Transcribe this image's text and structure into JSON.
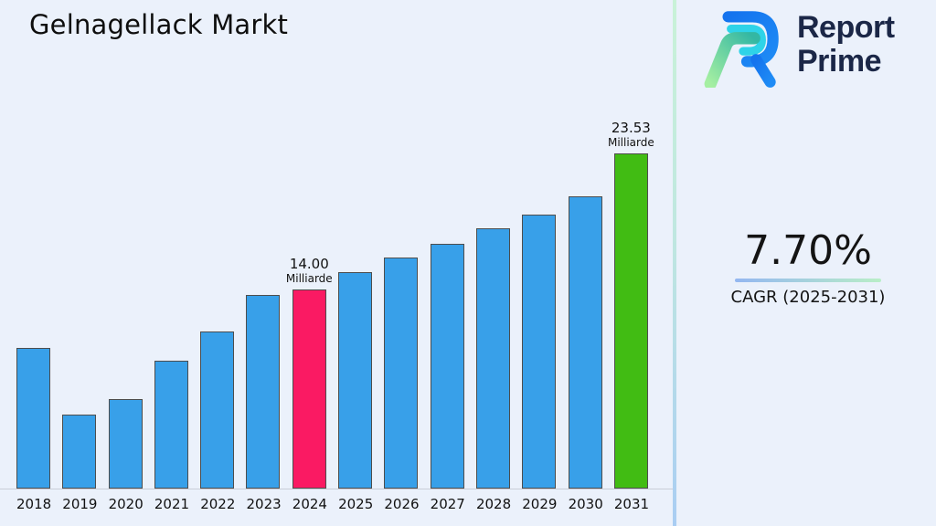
{
  "page": {
    "title": "Gelnagellack Markt"
  },
  "brand": {
    "name_line1": "Report",
    "name_line2": "Prime",
    "logo_colors": {
      "blue": "#1473EE",
      "cyan": "#2ED3E8",
      "green_light": "#A5EFA2",
      "green_teal": "#33B7A3",
      "text_navy": "#1B2747"
    }
  },
  "kpi": {
    "value": "7.70%",
    "label": "CAGR (2025-2031)"
  },
  "colors": {
    "background": "#EBF1FB",
    "bar_border": "#4d4d4d",
    "axis_line": "#c9ced8",
    "divider_top": "#c9f2d8",
    "divider_bottom": "#a9cdf3",
    "underline_left": "#94b7f1",
    "underline_right": "#b9eec7"
  },
  "chart_data": {
    "type": "bar",
    "title": "Gelnagellack Markt",
    "xlabel": "",
    "ylabel": "",
    "unit": "Milliarde",
    "categories": [
      "2018",
      "2019",
      "2020",
      "2021",
      "2022",
      "2023",
      "2024",
      "2025",
      "2026",
      "2027",
      "2028",
      "2029",
      "2030",
      "2031"
    ],
    "values": [
      9.9,
      5.2,
      6.3,
      9.0,
      11.0,
      13.6,
      14.0,
      15.2,
      16.2,
      17.2,
      18.3,
      19.2,
      20.5,
      23.53
    ],
    "ylim": [
      0,
      24
    ],
    "grid": false,
    "legend": "none",
    "bar_colors": {
      "default": "#38A0E9",
      "2024": "#FA1A63",
      "2031": "#41BC13"
    },
    "annotations": [
      {
        "category": "2024",
        "number": "14.00",
        "unit": "Milliarde"
      },
      {
        "category": "2031",
        "number": "23.53",
        "unit": "Milliarde"
      }
    ]
  }
}
